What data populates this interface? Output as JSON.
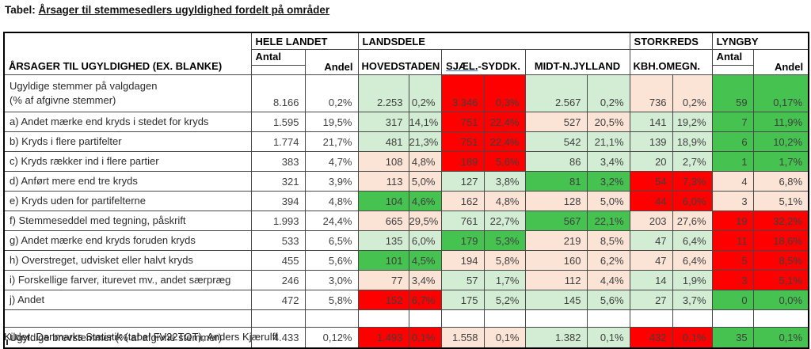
{
  "title": {
    "prefix": "Tabel: ",
    "underlined": "Årsager til stemmesedlers ugyldighed fordelt på områder"
  },
  "header": {
    "row_label": "ÅRSAGER TIL UGYLDIGHED (EX. BLANKE)",
    "groups": {
      "hele_landet": "HELE LANDET",
      "landsdele": "LANDSDELE",
      "storkreds": "STORKREDS",
      "lyngby": "LYNGBY"
    },
    "sub": {
      "antal": "Antal",
      "andel": "Andel",
      "hovedstaden": "HOVEDSTADEN",
      "sjael_part1": "SJÆL.",
      "sjael_part2": "-SYDDK.",
      "midt": "MIDT-N.JYLLAND",
      "kbh": "KBH.OMEGN."
    }
  },
  "colors": {
    "strong_green": "#45c24f",
    "light_green": "#d3edd4",
    "light_salmon": "#fbe3d6",
    "red": "#ff0000",
    "light_green_text": "#3e8e49"
  },
  "table": {
    "rows": [
      {
        "type": "first",
        "label": "Ugyldige stemmer på valgdagen",
        "label2": "(% af afgivne stemmer)",
        "cells": [
          {
            "v": "8.166",
            "c": "w"
          },
          {
            "v": "0,2%",
            "c": "w"
          },
          {
            "v": "2.253",
            "c": "lg"
          },
          {
            "v": "0,2%",
            "c": "lg"
          },
          {
            "v": "3.346",
            "c": "r"
          },
          {
            "v": "0,3%",
            "c": "r"
          },
          {
            "v": "2.567",
            "c": "lg"
          },
          {
            "v": "0,2%",
            "c": "lg"
          },
          {
            "v": "736",
            "c": "s"
          },
          {
            "v": "0,2%",
            "c": "s"
          },
          {
            "v": "59",
            "c": "g"
          },
          {
            "v": "0,17%",
            "c": "g"
          }
        ]
      },
      {
        "type": "std",
        "label": "a) Andet mærke end kryds i stedet for kryds",
        "cells": [
          {
            "v": "1.595",
            "c": "w"
          },
          {
            "v": "19,5%",
            "c": "w"
          },
          {
            "v": "317",
            "c": "lg"
          },
          {
            "v": "14,1%",
            "c": "lg"
          },
          {
            "v": "751",
            "c": "r"
          },
          {
            "v": "22,4%",
            "c": "r"
          },
          {
            "v": "527",
            "c": "s"
          },
          {
            "v": "20,5%",
            "c": "s"
          },
          {
            "v": "141",
            "c": "lg"
          },
          {
            "v": "19,2%",
            "c": "lg"
          },
          {
            "v": "7",
            "c": "g"
          },
          {
            "v": "11,9%",
            "c": "g"
          }
        ]
      },
      {
        "type": "std",
        "label": "b) Kryds i flere partifelter",
        "cells": [
          {
            "v": "1.774",
            "c": "w"
          },
          {
            "v": "21,7%",
            "c": "w"
          },
          {
            "v": "481",
            "c": "lg"
          },
          {
            "v": "21,3%",
            "c": "lg"
          },
          {
            "v": "751",
            "c": "r"
          },
          {
            "v": "22,4%",
            "c": "r"
          },
          {
            "v": "542",
            "c": "lg"
          },
          {
            "v": "21,1%",
            "c": "lg"
          },
          {
            "v": "139",
            "c": "lg"
          },
          {
            "v": "18,9%",
            "c": "lg"
          },
          {
            "v": "6",
            "c": "g"
          },
          {
            "v": "10,2%",
            "c": "g"
          }
        ]
      },
      {
        "type": "std",
        "label": "c) Kryds rækker ind i flere partier",
        "cells": [
          {
            "v": "383",
            "c": "w"
          },
          {
            "v": "4,7%",
            "c": "w"
          },
          {
            "v": "108",
            "c": "s"
          },
          {
            "v": "4,8%",
            "c": "s"
          },
          {
            "v": "189",
            "c": "r"
          },
          {
            "v": "5,6%",
            "c": "r"
          },
          {
            "v": "86",
            "c": "lg"
          },
          {
            "v": "3,4%",
            "c": "lg"
          },
          {
            "v": "20",
            "c": "lg"
          },
          {
            "v": "2,7%",
            "c": "lg"
          },
          {
            "v": "1",
            "c": "g"
          },
          {
            "v": "1,7%",
            "c": "g"
          }
        ]
      },
      {
        "type": "std",
        "label": "d) Anført mere end tre kryds",
        "cells": [
          {
            "v": "321",
            "c": "w"
          },
          {
            "v": "3,9%",
            "c": "w"
          },
          {
            "v": "113",
            "c": "s"
          },
          {
            "v": "5,0%",
            "c": "s"
          },
          {
            "v": "127",
            "c": "lg"
          },
          {
            "v": "3,8%",
            "c": "lg"
          },
          {
            "v": "81",
            "c": "g"
          },
          {
            "v": "3,2%",
            "c": "g"
          },
          {
            "v": "54",
            "c": "r"
          },
          {
            "v": "7,3%",
            "c": "r"
          },
          {
            "v": "4",
            "c": "s"
          },
          {
            "v": "6,8%",
            "c": "s"
          }
        ]
      },
      {
        "type": "std",
        "label": "e) Kryds uden for partifelterne",
        "cells": [
          {
            "v": "394",
            "c": "w"
          },
          {
            "v": "4,8%",
            "c": "w"
          },
          {
            "v": "104",
            "c": "g"
          },
          {
            "v": "4,6%",
            "c": "g"
          },
          {
            "v": "162",
            "c": "s"
          },
          {
            "v": "4,8%",
            "c": "s"
          },
          {
            "v": "128",
            "c": "s"
          },
          {
            "v": "5,0%",
            "c": "s"
          },
          {
            "v": "44",
            "c": "r"
          },
          {
            "v": "6,0%",
            "c": "r"
          },
          {
            "v": "3",
            "c": "s"
          },
          {
            "v": "5,1%",
            "c": "s"
          }
        ]
      },
      {
        "type": "std",
        "label": "f) Stemmeseddel med tegning, påskrift",
        "cells": [
          {
            "v": "1.993",
            "c": "w"
          },
          {
            "v": "24,4%",
            "c": "w"
          },
          {
            "v": "665",
            "c": "s"
          },
          {
            "v": "29,5%",
            "c": "s"
          },
          {
            "v": "761",
            "c": "lg"
          },
          {
            "v": "22,7%",
            "c": "lg"
          },
          {
            "v": "567",
            "c": "g"
          },
          {
            "v": "22,1%",
            "c": "g"
          },
          {
            "v": "203",
            "c": "s"
          },
          {
            "v": "27,6%",
            "c": "s"
          },
          {
            "v": "19",
            "c": "r"
          },
          {
            "v": "32,2%",
            "c": "r"
          }
        ]
      },
      {
        "type": "std",
        "label": "g) Andet mærke end kryds foruden kryds",
        "cells": [
          {
            "v": "533",
            "c": "w"
          },
          {
            "v": "6,5%",
            "c": "w"
          },
          {
            "v": "135",
            "c": "lg"
          },
          {
            "v": "6,0%",
            "c": "lg"
          },
          {
            "v": "179",
            "c": "g"
          },
          {
            "v": "5,3%",
            "c": "g"
          },
          {
            "v": "219",
            "c": "s"
          },
          {
            "v": "8,5%",
            "c": "s"
          },
          {
            "v": "47",
            "c": "lg"
          },
          {
            "v": "6,4%",
            "c": "lg"
          },
          {
            "v": "11",
            "c": "r"
          },
          {
            "v": "18,6%",
            "c": "r"
          }
        ]
      },
      {
        "type": "std",
        "label": "h) Overstreget, udvisket eller halvt kryds",
        "cells": [
          {
            "v": "455",
            "c": "w"
          },
          {
            "v": "5,6%",
            "c": "w"
          },
          {
            "v": "101",
            "c": "g"
          },
          {
            "v": "4,5%",
            "c": "g"
          },
          {
            "v": "194",
            "c": "s"
          },
          {
            "v": "5,8%",
            "c": "s"
          },
          {
            "v": "160",
            "c": "s"
          },
          {
            "v": "6,2%",
            "c": "s"
          },
          {
            "v": "47",
            "c": "s"
          },
          {
            "v": "6,4%",
            "c": "s"
          },
          {
            "v": "5",
            "c": "r"
          },
          {
            "v": "8,5%",
            "c": "r"
          }
        ]
      },
      {
        "type": "std",
        "label": "i) Forskellige farver, iturevet mv., andet særpræg",
        "cells": [
          {
            "v": "246",
            "c": "w"
          },
          {
            "v": "3,0%",
            "c": "w"
          },
          {
            "v": "77",
            "c": "s"
          },
          {
            "v": "3,4%",
            "c": "s"
          },
          {
            "v": "57",
            "c": "lg"
          },
          {
            "v": "1,7%",
            "c": "lg"
          },
          {
            "v": "112",
            "c": "s"
          },
          {
            "v": "4,4%",
            "c": "s"
          },
          {
            "v": "14",
            "c": "lg"
          },
          {
            "v": "1,9%",
            "c": "lg"
          },
          {
            "v": "3",
            "c": "r"
          },
          {
            "v": "5,1%",
            "c": "r"
          }
        ]
      },
      {
        "type": "std",
        "label": "j) Andet",
        "cells": [
          {
            "v": "472",
            "c": "w"
          },
          {
            "v": "5,8%",
            "c": "w"
          },
          {
            "v": "152",
            "c": "r"
          },
          {
            "v": "6,7%",
            "c": "r"
          },
          {
            "v": "175",
            "c": "lg"
          },
          {
            "v": "5,2%",
            "c": "lg"
          },
          {
            "v": "145",
            "c": "lg"
          },
          {
            "v": "5,6%",
            "c": "lg"
          },
          {
            "v": "27",
            "c": "lg"
          },
          {
            "v": "3,7%",
            "c": "lg"
          },
          {
            "v": "0",
            "c": "g"
          },
          {
            "v": "0,0%",
            "c": "g"
          }
        ]
      },
      {
        "type": "empty",
        "label": "",
        "cells": [
          {
            "v": "",
            "c": "w"
          },
          {
            "v": "",
            "c": "w"
          },
          {
            "v": "",
            "c": "w"
          },
          {
            "v": "",
            "c": "w"
          },
          {
            "v": "",
            "c": "w"
          },
          {
            "v": "",
            "c": "w"
          },
          {
            "v": "",
            "c": "w"
          },
          {
            "v": "",
            "c": "w"
          },
          {
            "v": "",
            "c": "w"
          },
          {
            "v": "",
            "c": "w"
          },
          {
            "v": "",
            "c": "w"
          },
          {
            "v": "",
            "c": "w"
          }
        ]
      },
      {
        "type": "brev",
        "label": "Ugyldige brevstemmer (% af afgivne stemmer)",
        "cells": [
          {
            "v": "4.433",
            "c": "w"
          },
          {
            "v": "0,12%",
            "c": "w"
          },
          {
            "v": "1.493",
            "c": "r"
          },
          {
            "v": "0,1%",
            "c": "r"
          },
          {
            "v": "1.558",
            "c": "s"
          },
          {
            "v": "0,1%",
            "c": "s"
          },
          {
            "v": "1.382",
            "c": "lg"
          },
          {
            "v": "0,1%",
            "c": "lg"
          },
          {
            "v": "432",
            "c": "r"
          },
          {
            "v": "0,1%",
            "c": "r"
          },
          {
            "v": "35",
            "c": "g"
          },
          {
            "v": "0,1%",
            "c": "g"
          }
        ]
      }
    ]
  },
  "footer": {
    "sources": "Kilder: Danmarks Statistik (tabel FV22TOT), Anders Kjærulff"
  }
}
